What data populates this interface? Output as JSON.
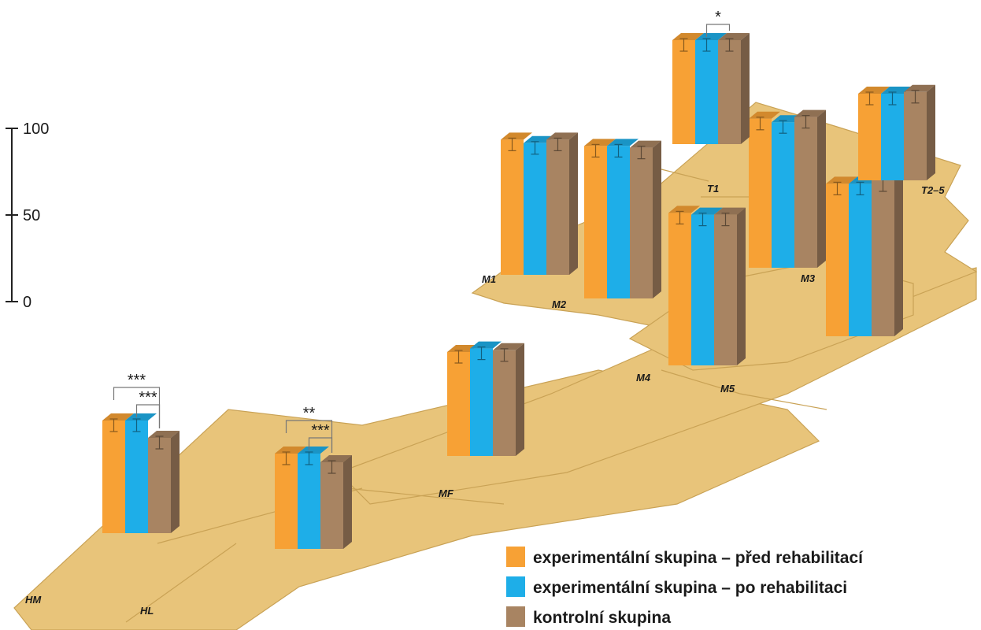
{
  "chart_data": {
    "type": "bar",
    "title": "",
    "xlabel": "",
    "ylabel": "",
    "ylim": [
      0,
      100
    ],
    "yticks": [
      0,
      50,
      100
    ],
    "grid": false,
    "legend_placement": "bottom-right",
    "categories": [
      "HM",
      "HL",
      "MF",
      "M1",
      "M2",
      "M3",
      "M4",
      "M5",
      "T1",
      "T2–5"
    ],
    "series": [
      {
        "name": "experimentální skupina – před rehabilitací",
        "color": "#f7a135",
        "values": [
          65,
          55,
          60,
          78,
          88,
          86,
          88,
          88,
          60,
          50
        ]
      },
      {
        "name": "experimentální skupina – po rehabilitaci",
        "color": "#1eaee8",
        "values": [
          65,
          55,
          62,
          76,
          88,
          84,
          87,
          88,
          60,
          50
        ]
      },
      {
        "name": "kontrolní skupina",
        "color": "#a88462",
        "values": [
          55,
          50,
          61,
          78,
          87,
          87,
          87,
          90,
          60,
          51
        ]
      }
    ],
    "significance": [
      {
        "category": "HM",
        "pairs": [
          {
            "from": 0,
            "to": 2,
            "label": "***"
          },
          {
            "from": 1,
            "to": 2,
            "label": "***"
          }
        ]
      },
      {
        "category": "HL",
        "pairs": [
          {
            "from": 0,
            "to": 2,
            "label": "**"
          },
          {
            "from": 1,
            "to": 2,
            "label": "***"
          }
        ]
      },
      {
        "category": "T1",
        "pairs": [
          {
            "from": 1,
            "to": 2,
            "label": "*"
          }
        ]
      }
    ]
  }
}
